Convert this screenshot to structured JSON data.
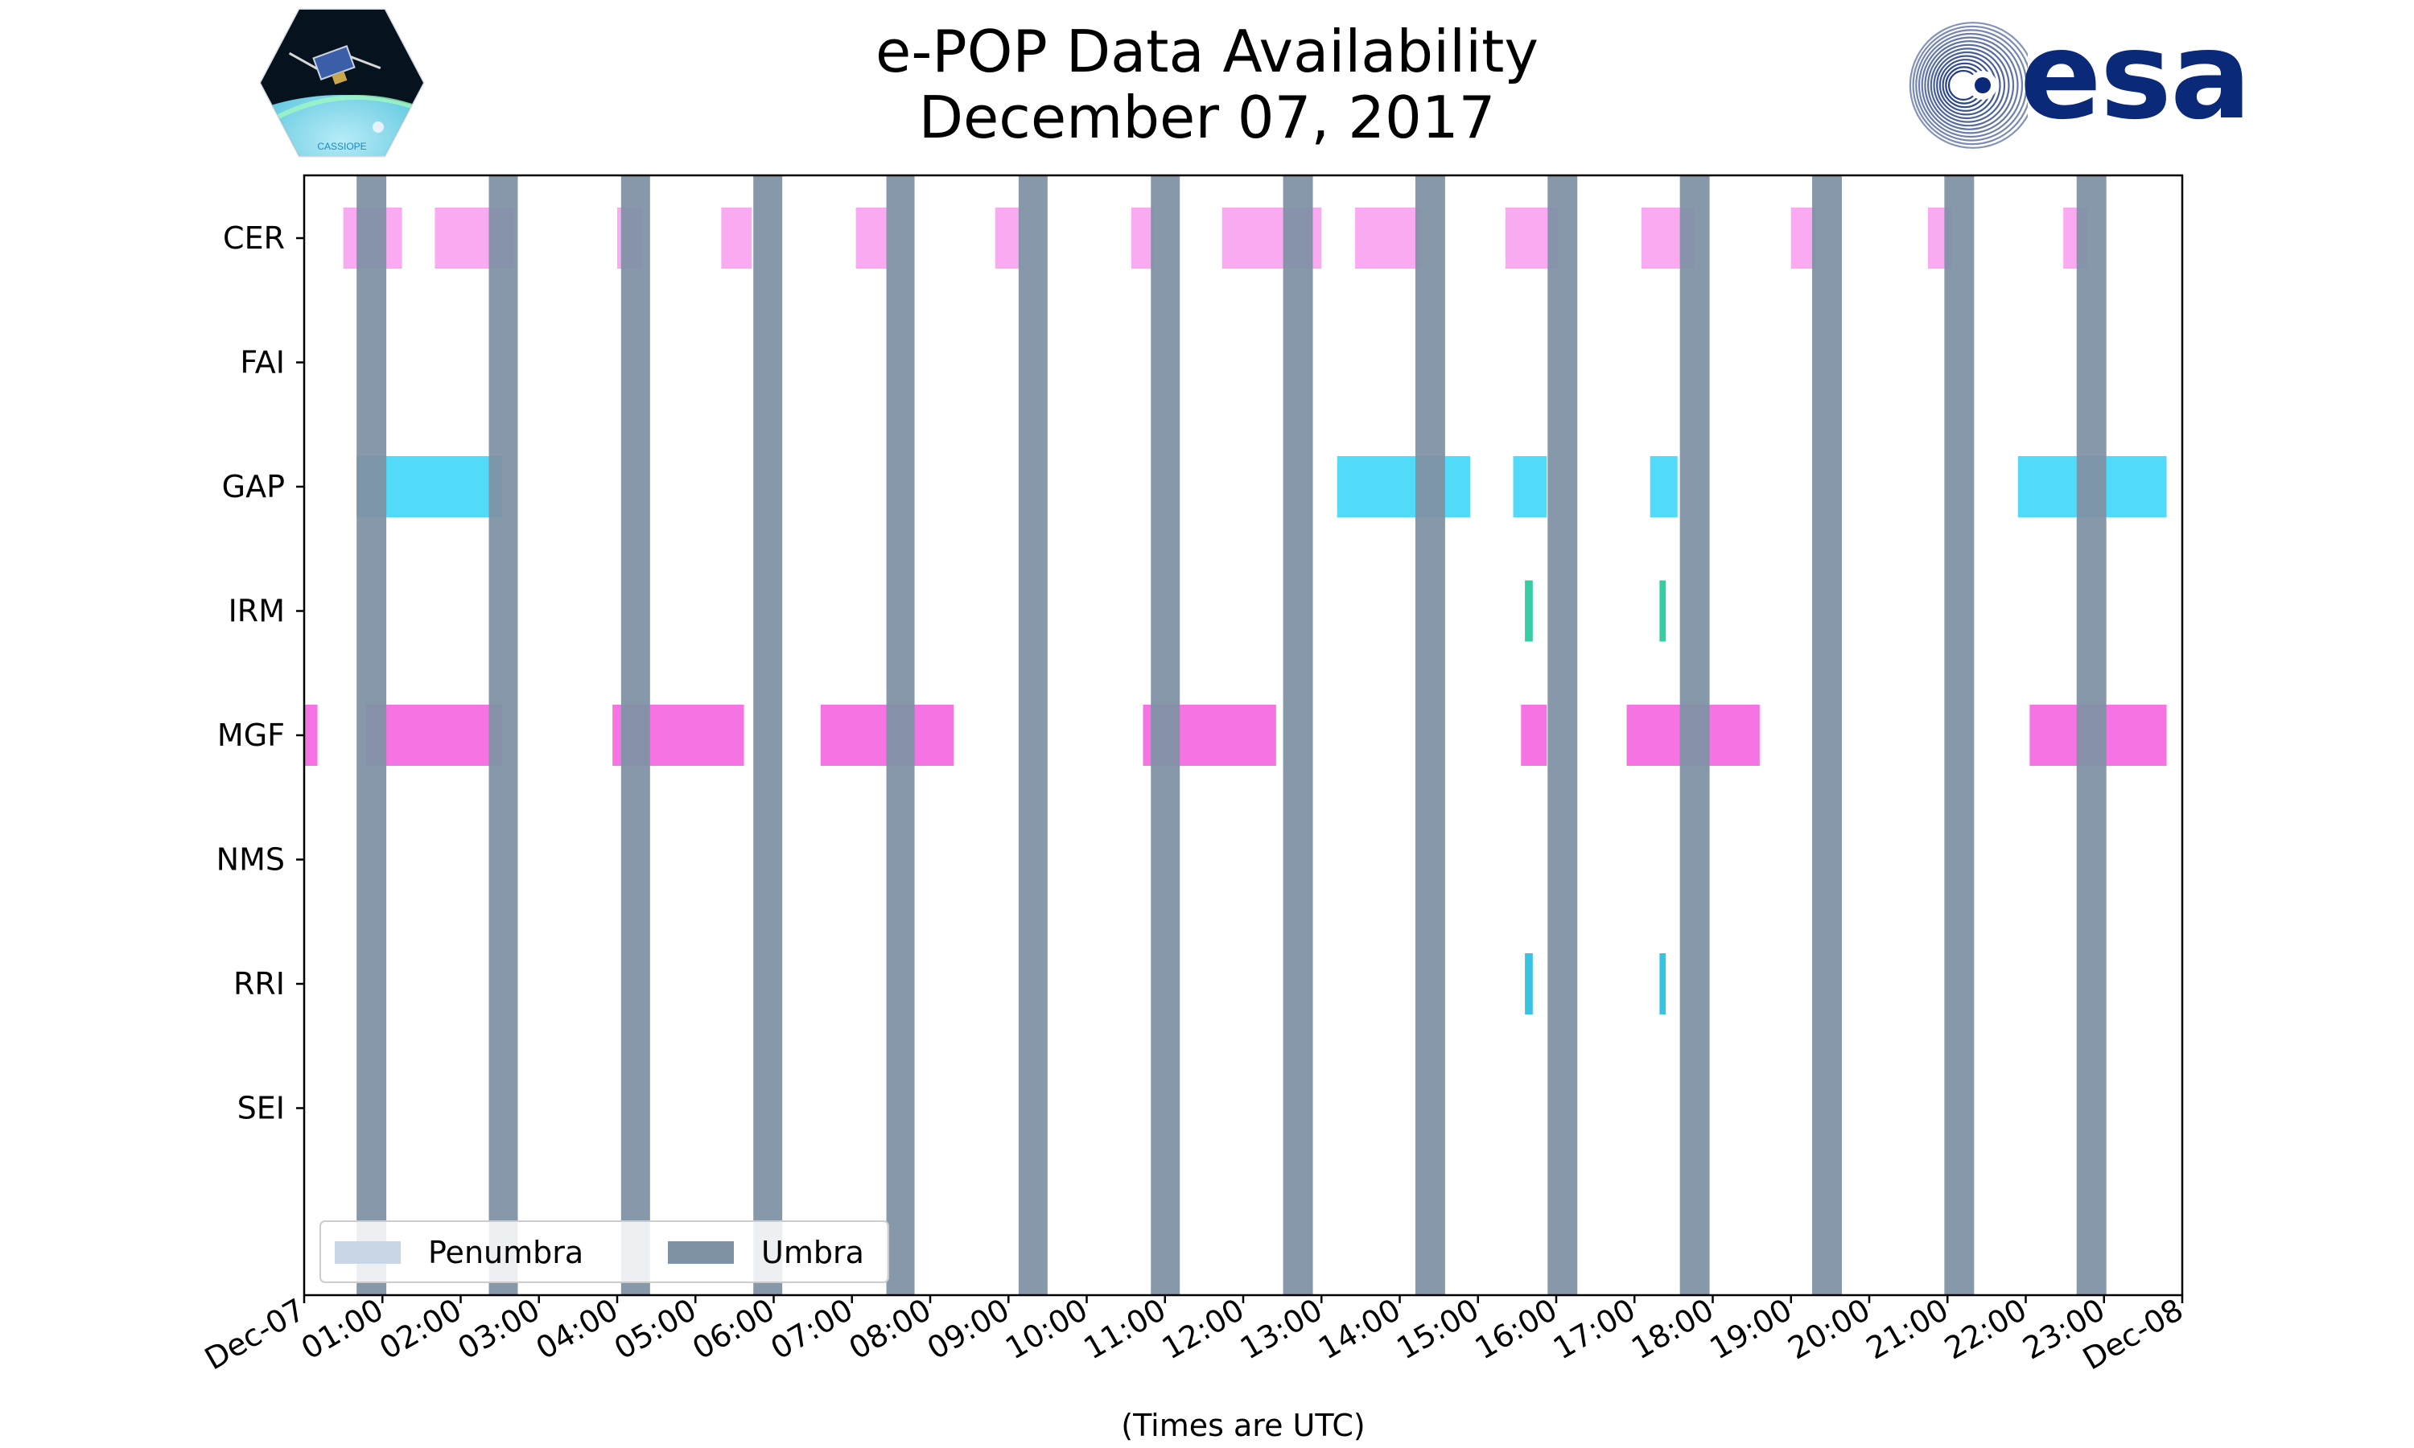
{
  "chart_data": {
    "type": "timeline",
    "title": "e-POP Data Availability",
    "subtitle": "December 07, 2017",
    "xlabel": "(Times are UTC)",
    "ylabel": "",
    "xlim": [
      0,
      24
    ],
    "x_unit": "hours UTC",
    "x_tick_labels": [
      "Dec-07",
      "01:00",
      "02:00",
      "03:00",
      "04:00",
      "05:00",
      "06:00",
      "07:00",
      "08:00",
      "09:00",
      "10:00",
      "11:00",
      "12:00",
      "13:00",
      "14:00",
      "15:00",
      "16:00",
      "17:00",
      "18:00",
      "19:00",
      "20:00",
      "21:00",
      "22:00",
      "23:00",
      "Dec-08"
    ],
    "categories": [
      "CER",
      "FAI",
      "GAP",
      "IRM",
      "MGF",
      "NMS",
      "RRI",
      "SEI"
    ],
    "legend": {
      "placement": "lower-left",
      "entries": [
        {
          "name": "Penumbra",
          "color": "#c9d6e6"
        },
        {
          "name": "Umbra",
          "color": "#7f92a5"
        }
      ]
    },
    "umbra_intervals": [
      [
        0.67,
        1.05
      ],
      [
        2.36,
        2.73
      ],
      [
        4.05,
        4.42
      ],
      [
        5.74,
        6.11
      ],
      [
        7.44,
        7.8
      ],
      [
        9.13,
        9.5
      ],
      [
        10.82,
        11.19
      ],
      [
        12.51,
        12.89
      ],
      [
        14.2,
        14.58
      ],
      [
        15.89,
        16.27
      ],
      [
        17.58,
        17.96
      ],
      [
        19.27,
        19.65
      ],
      [
        20.96,
        21.34
      ],
      [
        22.65,
        23.03
      ]
    ],
    "series": [
      {
        "name": "CER",
        "color": "#f9a1f0",
        "intervals": [
          [
            0.5,
            1.25
          ],
          [
            1.67,
            2.68
          ],
          [
            4.0,
            4.32
          ],
          [
            5.33,
            5.72
          ],
          [
            7.05,
            7.45
          ],
          [
            8.83,
            9.15
          ],
          [
            10.57,
            10.86
          ],
          [
            11.73,
            13.0
          ],
          [
            13.43,
            14.26
          ],
          [
            15.35,
            16.03
          ],
          [
            17.09,
            17.76
          ],
          [
            19.0,
            19.32
          ],
          [
            20.75,
            21.05
          ],
          [
            22.48,
            22.78
          ]
        ]
      },
      {
        "name": "FAI",
        "color": "#f9a1f0",
        "intervals": []
      },
      {
        "name": "GAP",
        "color": "#3fd7f7",
        "intervals": [
          [
            0.67,
            2.53
          ],
          [
            13.2,
            14.9
          ],
          [
            15.45,
            15.88
          ],
          [
            17.2,
            17.55
          ],
          [
            21.9,
            23.8
          ]
        ]
      },
      {
        "name": "IRM",
        "color": "#22c79b",
        "intervals": [
          [
            15.6,
            15.7
          ],
          [
            17.32,
            17.4
          ]
        ]
      },
      {
        "name": "MGF",
        "color": "#f464e0",
        "intervals": [
          [
            0.0,
            0.17
          ],
          [
            0.79,
            2.53
          ],
          [
            3.94,
            5.62
          ],
          [
            6.6,
            8.3
          ],
          [
            10.72,
            12.42
          ],
          [
            15.55,
            15.88
          ],
          [
            16.9,
            18.6
          ],
          [
            22.05,
            23.8
          ]
        ]
      },
      {
        "name": "NMS",
        "color": "#f464e0",
        "intervals": []
      },
      {
        "name": "RRI",
        "color": "#22bde0",
        "intervals": [
          [
            15.6,
            15.7
          ],
          [
            17.32,
            17.4
          ]
        ]
      },
      {
        "name": "SEI",
        "color": "#f464e0",
        "intervals": []
      }
    ],
    "grid": false
  },
  "logos": {
    "left_icon": "cassiope-satellite-logo",
    "right_icon": "esa-logo",
    "right_text": "esa",
    "left_badge_text": "CASSIOPE"
  }
}
